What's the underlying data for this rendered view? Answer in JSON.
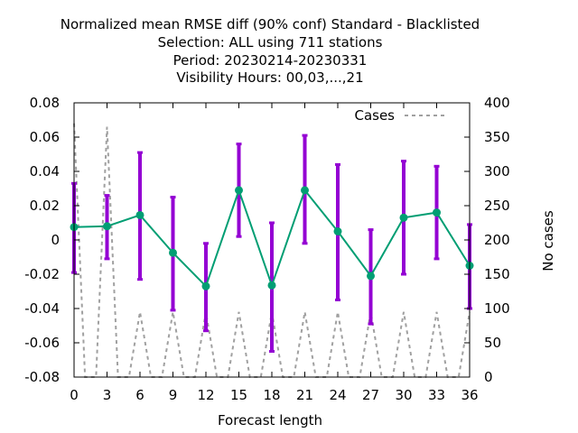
{
  "chart_data": {
    "type": "line",
    "title_lines": [
      "Normalized mean RMSE diff (90% conf) Standard - Blacklisted",
      "Selection: ALL using   711 stations",
      "Period: 20230214-20230331",
      "Visibility   Hours:  00,03,...,21"
    ],
    "xlabel": "Forecast length",
    "ylabel": "",
    "y2label": "No cases",
    "xlim": [
      0,
      36
    ],
    "ylim": [
      -0.08,
      0.08
    ],
    "y2lim": [
      0,
      400
    ],
    "x_ticks": [
      "0",
      "3",
      "6",
      "9",
      "12",
      "15",
      "18",
      "21",
      "24",
      "27",
      "30",
      "33",
      "36"
    ],
    "y_ticks": [
      "0.08",
      "0.06",
      "0.04",
      "0.02",
      "0",
      "-0.02",
      "-0.04",
      "-0.06",
      "-0.08"
    ],
    "y2_ticks": [
      "400",
      "350",
      "300",
      "250",
      "200",
      "150",
      "100",
      "50",
      "0"
    ],
    "grid": false,
    "legend_position": "top-right",
    "colors": {
      "line": "#009e73",
      "errorbar": "#9400d3",
      "cases": "#a0a0a0"
    },
    "series": [
      {
        "x": [
          0,
          3,
          6,
          9,
          12,
          15,
          18,
          21,
          24,
          27,
          30,
          33,
          36
        ],
        "values": [
          0.0075,
          0.008,
          0.0145,
          -0.0075,
          -0.027,
          0.029,
          -0.0265,
          0.029,
          0.005,
          -0.021,
          0.013,
          0.016,
          -0.015
        ],
        "ci_low": [
          -0.019,
          -0.011,
          -0.023,
          -0.041,
          -0.053,
          0.002,
          -0.065,
          -0.002,
          -0.035,
          -0.049,
          -0.02,
          -0.011,
          -0.04
        ],
        "ci_high": [
          0.033,
          0.026,
          0.051,
          0.025,
          -0.002,
          0.056,
          0.01,
          0.061,
          0.044,
          0.006,
          0.046,
          0.043,
          0.009
        ]
      },
      {
        "name": "Cases",
        "axis": "right",
        "x": [
          0,
          1,
          2,
          3,
          4,
          5,
          6,
          7,
          8,
          9,
          10,
          11,
          12,
          13,
          14,
          15,
          16,
          17,
          18,
          19,
          20,
          21,
          22,
          23,
          24,
          25,
          26,
          27,
          28,
          29,
          30,
          31,
          32,
          33,
          34,
          35,
          36
        ],
        "values": [
          370,
          0,
          0,
          365,
          0,
          0,
          95,
          0,
          0,
          95,
          0,
          0,
          95,
          0,
          0,
          95,
          0,
          0,
          95,
          0,
          0,
          95,
          0,
          0,
          95,
          0,
          0,
          95,
          0,
          0,
          95,
          0,
          0,
          95,
          0,
          0,
          95
        ]
      }
    ]
  }
}
